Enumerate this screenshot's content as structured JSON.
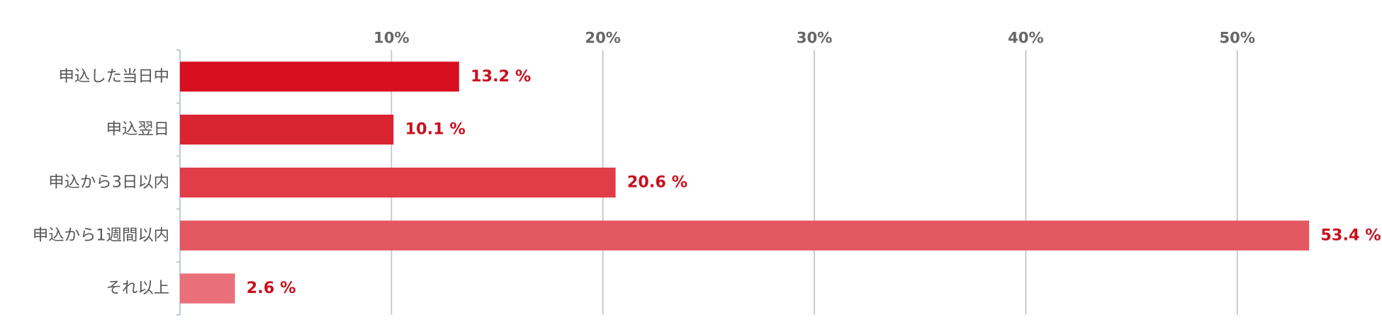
{
  "chart_data": {
    "type": "hbar",
    "categories": [
      "申込した当日中",
      "申込翌日",
      "申込から3日以内",
      "申込から1週間以内",
      "それ以上"
    ],
    "values": [
      13.2,
      10.1,
      20.6,
      53.4,
      2.6
    ],
    "value_labels": [
      "13.2 %",
      "10.1 %",
      "20.6 %",
      "53.4 %",
      "2.6 %"
    ],
    "colors": [
      "#d70f1e",
      "#db2432",
      "#e03d48",
      "#e45861",
      "#e9707a"
    ],
    "xlim": [
      0,
      56
    ],
    "xticks": [
      {
        "value": 10,
        "label": "10%"
      },
      {
        "value": 20,
        "label": "20%"
      },
      {
        "value": 30,
        "label": "30%"
      },
      {
        "value": 40,
        "label": "40%"
      },
      {
        "value": 50,
        "label": "50%"
      }
    ],
    "grid": true
  }
}
